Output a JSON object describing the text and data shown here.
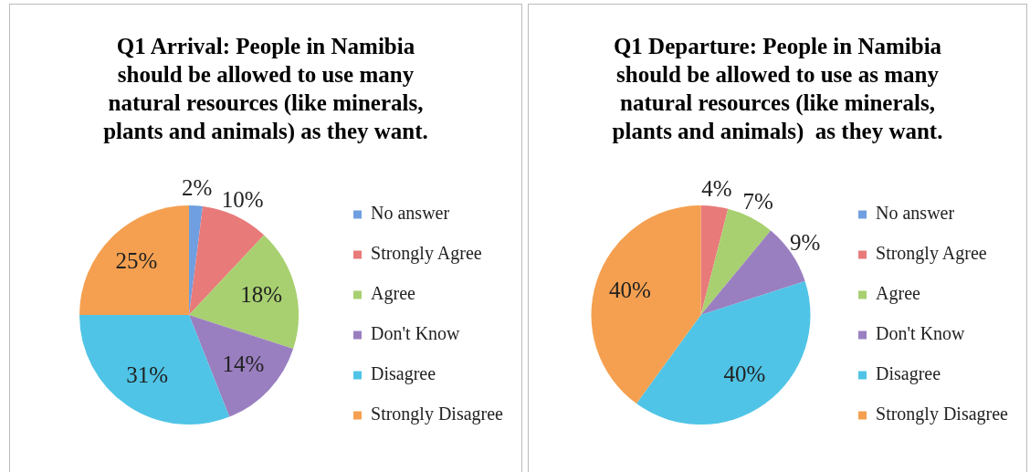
{
  "chart_data": [
    {
      "type": "pie",
      "title": "Q1 Arrival: People in Namibia should be allowed to use many natural resources (like minerals, plants and animals) as they want.",
      "categories": [
        "No answer",
        "Strongly Agree",
        "Agree",
        "Don't Know",
        "Disagree",
        "Strongly Disagree"
      ],
      "values": [
        2,
        10,
        18,
        14,
        31,
        25
      ],
      "colors": [
        "#6f9fe0",
        "#e87a7a",
        "#a8d070",
        "#9a7fc0",
        "#4fc4e6",
        "#f5a050"
      ],
      "value_labels": [
        "2%",
        "10%",
        "18%",
        "14%",
        "31%",
        "25%"
      ],
      "legend": "right"
    },
    {
      "type": "pie",
      "title": "Q1 Departure: People in Namibia should be allowed to use as many natural resources (like minerals, plants and animals)  as they want.",
      "categories": [
        "No answer",
        "Strongly Agree",
        "Agree",
        "Don't Know",
        "Disagree",
        "Strongly Disagree"
      ],
      "values": [
        0,
        4,
        7,
        9,
        40,
        40
      ],
      "colors": [
        "#6f9fe0",
        "#e87a7a",
        "#a8d070",
        "#9a7fc0",
        "#4fc4e6",
        "#f5a050"
      ],
      "value_labels": [
        null,
        "4%",
        "7%",
        "9%",
        "40%",
        "40%"
      ],
      "legend": "right"
    }
  ]
}
